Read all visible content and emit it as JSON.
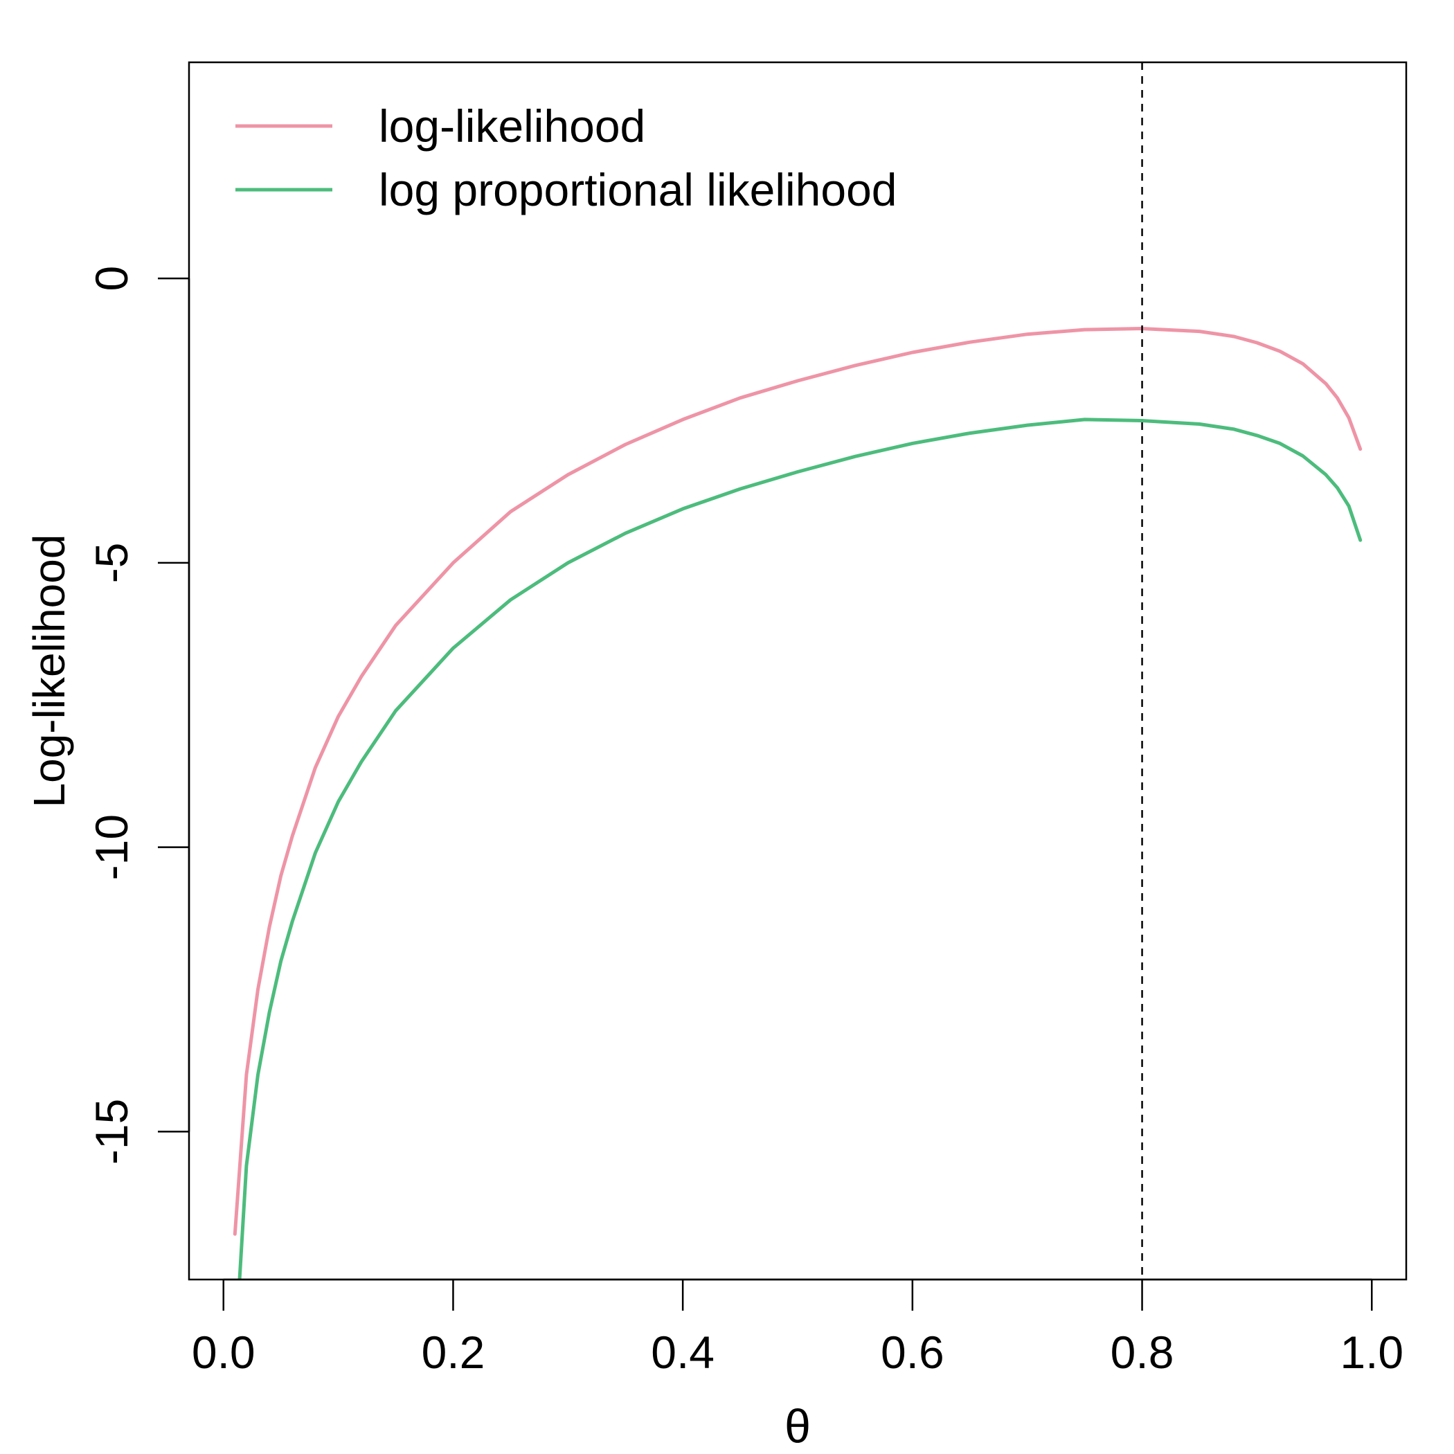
{
  "chart_data": {
    "type": "line",
    "title": "",
    "xlabel": "θ",
    "ylabel": "Log-likelihood",
    "xlim": [
      -0.03,
      1.03
    ],
    "ylim": [
      -17.6,
      3.8
    ],
    "x_ticks": [
      0.0,
      0.2,
      0.4,
      0.6,
      0.8,
      1.0
    ],
    "x_tick_labels": [
      "0.0",
      "0.2",
      "0.4",
      "0.6",
      "0.8",
      "1.0"
    ],
    "y_ticks": [
      0,
      -5,
      -10,
      -15
    ],
    "y_tick_labels": [
      "0",
      "-5",
      "-10",
      "-15"
    ],
    "grid": false,
    "legend_position": "top-left",
    "reference_line": {
      "x": 0.8,
      "style": "dashed",
      "color": "#000000"
    },
    "series": [
      {
        "name": "log-likelihood",
        "color": "#ee94a6",
        "x": [
          0.01,
          0.02,
          0.03,
          0.04,
          0.05,
          0.06,
          0.08,
          0.1,
          0.12,
          0.15,
          0.2,
          0.25,
          0.3,
          0.35,
          0.4,
          0.45,
          0.5,
          0.55,
          0.6,
          0.65,
          0.7,
          0.75,
          0.8,
          0.85,
          0.88,
          0.9,
          0.92,
          0.94,
          0.96,
          0.97,
          0.98,
          0.99
        ],
        "y": [
          -16.8,
          -14.0,
          -12.5,
          -11.4,
          -10.5,
          -9.8,
          -8.6,
          -7.7,
          -7.0,
          -6.1,
          -5.0,
          -4.1,
          -3.45,
          -2.92,
          -2.48,
          -2.1,
          -1.8,
          -1.53,
          -1.3,
          -1.12,
          -0.98,
          -0.9,
          -0.88,
          -0.93,
          -1.02,
          -1.13,
          -1.28,
          -1.5,
          -1.85,
          -2.1,
          -2.45,
          -3.0
        ]
      },
      {
        "name": "log proportional likelihood",
        "color": "#4cbc7c",
        "x": [
          0.014,
          0.02,
          0.03,
          0.04,
          0.05,
          0.06,
          0.08,
          0.1,
          0.12,
          0.15,
          0.2,
          0.25,
          0.3,
          0.35,
          0.4,
          0.45,
          0.5,
          0.55,
          0.6,
          0.65,
          0.7,
          0.75,
          0.8,
          0.85,
          0.88,
          0.9,
          0.92,
          0.94,
          0.96,
          0.97,
          0.98,
          0.99
        ],
        "y": [
          -17.6,
          -15.6,
          -14.0,
          -12.9,
          -12.0,
          -11.3,
          -10.1,
          -9.2,
          -8.5,
          -7.6,
          -6.5,
          -5.65,
          -5.0,
          -4.48,
          -4.05,
          -3.7,
          -3.4,
          -3.13,
          -2.9,
          -2.72,
          -2.58,
          -2.48,
          -2.5,
          -2.56,
          -2.65,
          -2.76,
          -2.9,
          -3.12,
          -3.45,
          -3.68,
          -4.0,
          -4.6
        ]
      }
    ]
  }
}
